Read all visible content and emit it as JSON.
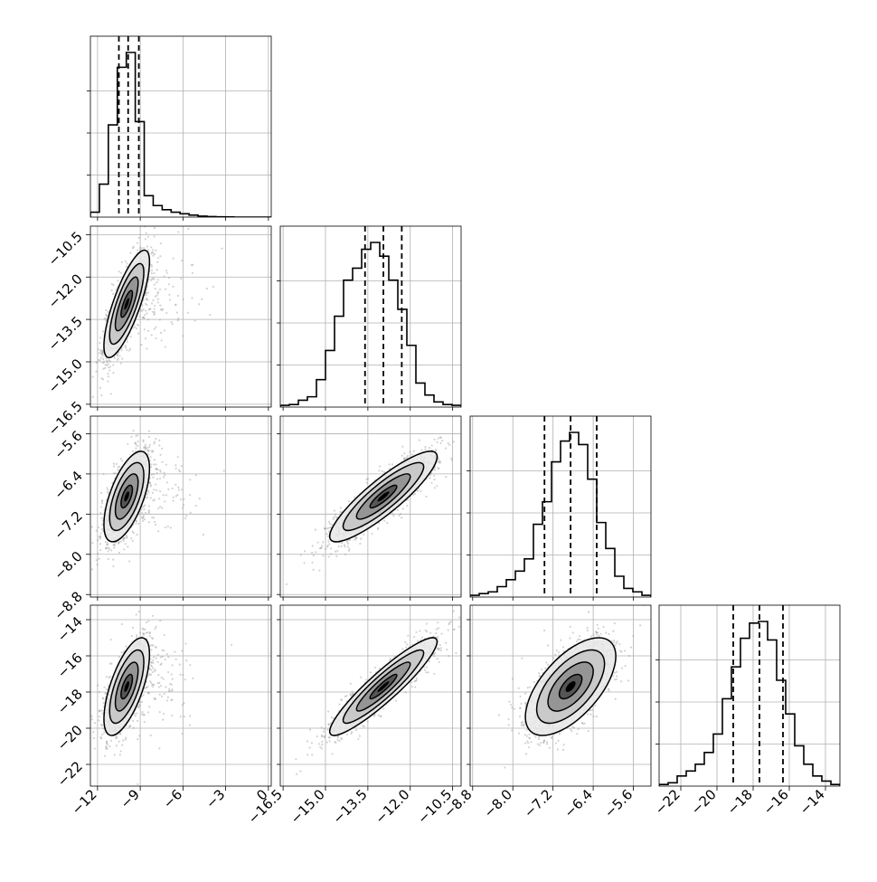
{
  "chart_data": {
    "type": "corner",
    "grid": true,
    "title": "",
    "quantile_lines": "dashed",
    "params": [
      {
        "range": [
          -12.5,
          0.2
        ],
        "ticks": [
          -12,
          -9,
          -6,
          -3,
          0
        ],
        "tick_labels": [
          "−12",
          "−9",
          "−6",
          "−3",
          "0"
        ],
        "quantiles": [
          -10.5,
          -9.85,
          -9.1
        ],
        "hist": {
          "bin_edges": [
            -12.5,
            -11.87,
            -11.24,
            -10.61,
            -9.98,
            -9.35,
            -8.72,
            -8.09,
            -7.46,
            -6.83,
            -6.2,
            -5.57,
            -4.94,
            -4.31,
            -3.68,
            -3.05,
            -2.42,
            -1.79,
            -1.16,
            -0.53,
            0.2
          ],
          "counts": [
            0.03,
            0.2,
            0.56,
            0.91,
            1.0,
            0.58,
            0.13,
            0.07,
            0.045,
            0.03,
            0.02,
            0.012,
            0.006,
            0.003,
            0.002,
            0.001,
            0,
            0,
            0,
            0
          ]
        }
      },
      {
        "range": [
          -16.6,
          -10.2
        ],
        "ticks": [
          -16.5,
          -15.0,
          -13.5,
          -12.0,
          -10.5
        ],
        "tick_labels": [
          "−16.5",
          "−15.0",
          "−13.5",
          "−12.0",
          "−10.5"
        ],
        "quantiles": [
          -13.6,
          -12.95,
          -12.3
        ],
        "hist": {
          "bin_edges": [
            -16.6,
            -16.28,
            -15.96,
            -15.64,
            -15.32,
            -15.0,
            -14.68,
            -14.36,
            -14.04,
            -13.72,
            -13.4,
            -13.08,
            -12.76,
            -12.44,
            -12.12,
            -11.8,
            -11.48,
            -11.16,
            -10.84,
            -10.52,
            -10.2
          ],
          "counts": [
            0.01,
            0.015,
            0.04,
            0.06,
            0.16,
            0.33,
            0.53,
            0.74,
            0.81,
            0.92,
            0.96,
            0.88,
            0.74,
            0.57,
            0.36,
            0.14,
            0.07,
            0.03,
            0.015,
            0.01
          ]
        }
      },
      {
        "range": [
          -8.85,
          -5.25
        ],
        "ticks": [
          -8.8,
          -8.0,
          -7.2,
          -6.4,
          -5.6
        ],
        "tick_labels": [
          "−8.8",
          "−8.0",
          "−7.2",
          "−6.4",
          "−5.6"
        ],
        "quantiles": [
          -7.37,
          -6.85,
          -6.33
        ],
        "hist": {
          "bin_edges": [
            -8.85,
            -8.67,
            -8.49,
            -8.31,
            -8.13,
            -7.95,
            -7.77,
            -7.59,
            -7.41,
            -7.23,
            -7.05,
            -6.87,
            -6.69,
            -6.51,
            -6.33,
            -6.15,
            -5.97,
            -5.79,
            -5.61,
            -5.43,
            -5.25
          ],
          "counts": [
            0.01,
            0.02,
            0.03,
            0.06,
            0.1,
            0.15,
            0.22,
            0.42,
            0.55,
            0.78,
            0.9,
            0.95,
            0.88,
            0.68,
            0.43,
            0.28,
            0.12,
            0.05,
            0.03,
            0.01
          ]
        }
      },
      {
        "range": [
          -23.2,
          -13.2
        ],
        "ticks": [
          -22,
          -20,
          -18,
          -16,
          -14
        ],
        "tick_labels": [
          "−22",
          "−20",
          "−18",
          "−16",
          "−14"
        ],
        "quantiles": [
          -19.1,
          -17.65,
          -16.35
        ],
        "hist": {
          "bin_edges": [
            -23.2,
            -22.7,
            -22.2,
            -21.7,
            -21.2,
            -20.7,
            -20.2,
            -19.7,
            -19.2,
            -18.7,
            -18.2,
            -17.7,
            -17.2,
            -16.7,
            -16.2,
            -15.7,
            -15.2,
            -14.7,
            -14.2,
            -13.7,
            -13.2
          ],
          "counts": [
            0.01,
            0.02,
            0.06,
            0.09,
            0.13,
            0.2,
            0.31,
            0.52,
            0.71,
            0.88,
            0.97,
            0.98,
            0.87,
            0.63,
            0.43,
            0.24,
            0.13,
            0.06,
            0.03,
            0.01
          ]
        }
      }
    ],
    "pair_contours": [
      {
        "xi": 0,
        "yi": 1,
        "mean": [
          -9.95,
          -12.95
        ],
        "sd": [
          0.8,
          0.95
        ],
        "rho": 0.78
      },
      {
        "xi": 0,
        "yi": 2,
        "mean": [
          -9.95,
          -6.85
        ],
        "sd": [
          0.8,
          0.45
        ],
        "rho": 0.62
      },
      {
        "xi": 1,
        "yi": 2,
        "mean": [
          -12.95,
          -6.85
        ],
        "sd": [
          0.95,
          0.45
        ],
        "rho": 0.88
      },
      {
        "xi": 0,
        "yi": 3,
        "mean": [
          -9.95,
          -17.7
        ],
        "sd": [
          0.8,
          1.35
        ],
        "rho": 0.66
      },
      {
        "xi": 1,
        "yi": 3,
        "mean": [
          -12.95,
          -17.7
        ],
        "sd": [
          0.95,
          1.35
        ],
        "rho": 0.92
      },
      {
        "xi": 2,
        "yi": 3,
        "mean": [
          -6.85,
          -17.7
        ],
        "sd": [
          0.45,
          1.35
        ],
        "rho": 0.62
      }
    ],
    "contour_levels_sigma": [
      0.5,
      1.0,
      1.5,
      2.0
    ],
    "contour_color": "#000000",
    "scatter_color": "#9e9e9e",
    "density_colors": [
      "#e8e8e8",
      "#c4c4c4",
      "#8c8c8c",
      "#4a4a4a",
      "#000000"
    ]
  }
}
